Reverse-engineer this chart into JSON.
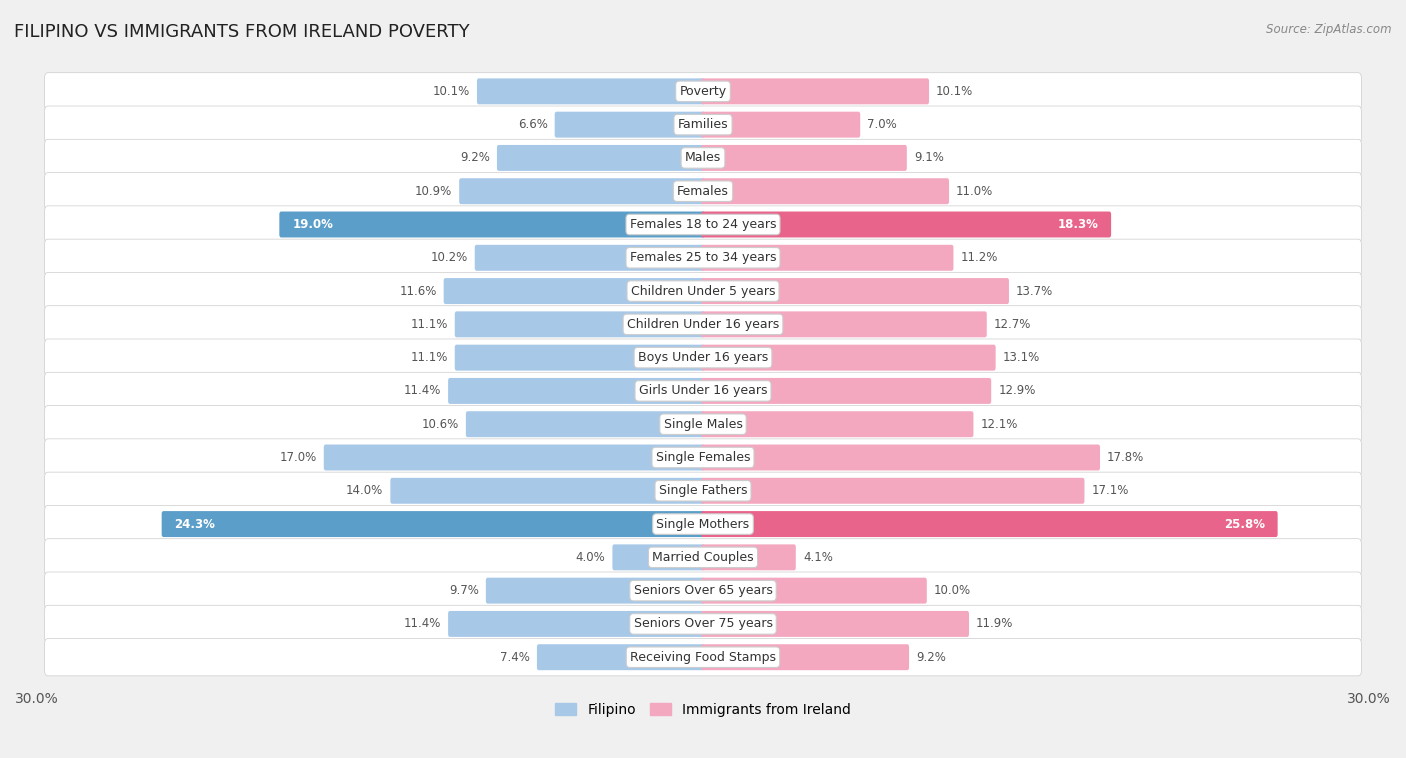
{
  "title": "FILIPINO VS IMMIGRANTS FROM IRELAND POVERTY",
  "source": "Source: ZipAtlas.com",
  "categories": [
    "Poverty",
    "Families",
    "Males",
    "Females",
    "Females 18 to 24 years",
    "Females 25 to 34 years",
    "Children Under 5 years",
    "Children Under 16 years",
    "Boys Under 16 years",
    "Girls Under 16 years",
    "Single Males",
    "Single Females",
    "Single Fathers",
    "Single Mothers",
    "Married Couples",
    "Seniors Over 65 years",
    "Seniors Over 75 years",
    "Receiving Food Stamps"
  ],
  "filipino": [
    10.1,
    6.6,
    9.2,
    10.9,
    19.0,
    10.2,
    11.6,
    11.1,
    11.1,
    11.4,
    10.6,
    17.0,
    14.0,
    24.3,
    4.0,
    9.7,
    11.4,
    7.4
  ],
  "ireland": [
    10.1,
    7.0,
    9.1,
    11.0,
    18.3,
    11.2,
    13.7,
    12.7,
    13.1,
    12.9,
    12.1,
    17.8,
    17.1,
    25.8,
    4.1,
    10.0,
    11.9,
    9.2
  ],
  "filipino_color": "#a8c8e8",
  "ireland_color": "#f4a8c0",
  "highlight_filipino_color": "#5b9ec9",
  "highlight_ireland_color": "#e8648a",
  "highlight_rows": [
    4,
    13
  ],
  "row_bg_light": "#e8e8e8",
  "row_bg_dark": "#d8d8d8",
  "pill_bg": "#efefef",
  "xlim": 30.0,
  "bar_height": 0.62,
  "label_fontsize": 9.0,
  "value_fontsize": 8.5,
  "title_fontsize": 13
}
